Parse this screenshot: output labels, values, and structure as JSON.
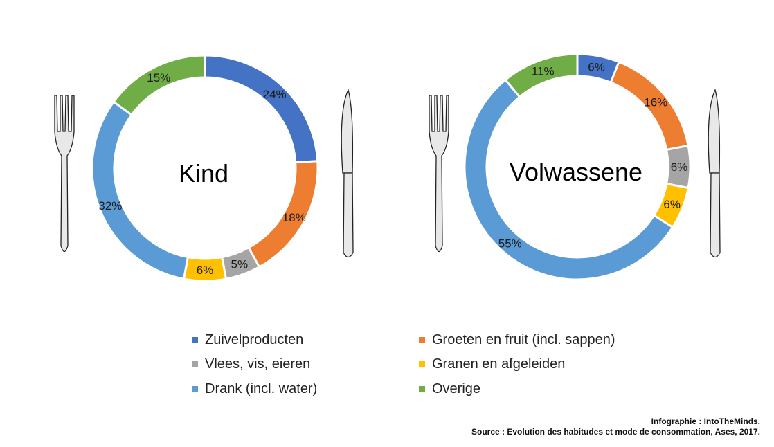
{
  "chart_data": [
    {
      "type": "pie",
      "variant": "donut",
      "title": "Kind",
      "categories": [
        "Zuivelproducten",
        "Groeten en fruit (incl. sappen)",
        "Vlees, vis, eieren",
        "Granen en afgeleiden",
        "Drank (incl. water)",
        "Overige"
      ],
      "values": [
        24,
        18,
        5,
        6,
        32,
        15
      ],
      "labels": [
        "24%",
        "18%",
        "5%",
        "6%",
        "32%",
        "15%"
      ]
    },
    {
      "type": "pie",
      "variant": "donut",
      "title": "Volwassene",
      "categories": [
        "Zuivelproducten",
        "Groeten en fruit (incl. sappen)",
        "Vlees, vis, eieren",
        "Granen en afgeleiden",
        "Drank (incl. water)",
        "Overige"
      ],
      "values": [
        6,
        16,
        6,
        6,
        55,
        11
      ],
      "labels": [
        "6%",
        "16%",
        "6%",
        "6%",
        "55%",
        "11%"
      ]
    }
  ],
  "colors": [
    "#4472c4",
    "#ed7d31",
    "#a5a5a5",
    "#ffc000",
    "#5b9bd5",
    "#70ad47"
  ],
  "legend": {
    "position": "bottom",
    "items": [
      {
        "label": "Zuivelproducten",
        "color": "#4472c4"
      },
      {
        "label": "Groeten en fruit (incl. sappen)",
        "color": "#ed7d31"
      },
      {
        "label": "Vlees, vis, eieren",
        "color": "#a5a5a5"
      },
      {
        "label": "Granen en afgeleiden",
        "color": "#ffc000"
      },
      {
        "label": "Drank (incl. water)",
        "color": "#5b9bd5"
      },
      {
        "label": "Overige",
        "color": "#70ad47"
      }
    ]
  },
  "credits": {
    "infographic": "Infographie : IntoTheMinds.",
    "source": "Source : Evolution des habitudes et mode de consommation, Ases, 2017."
  }
}
